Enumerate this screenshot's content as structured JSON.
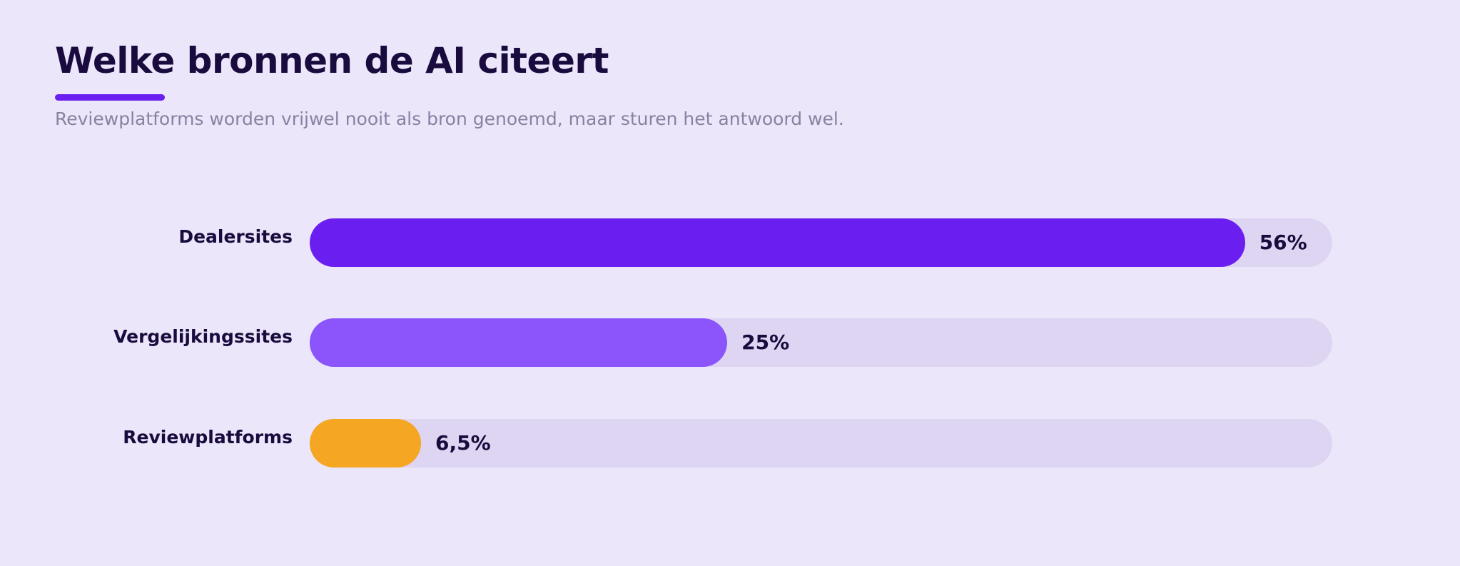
{
  "header": {
    "title": "Welke bronnen de AI citeert",
    "subtitle": "Reviewplatforms worden vrijwel nooit als bron genoemd, maar sturen het antwoord wel."
  },
  "colors": {
    "background": "#ebe6f9",
    "accent": "#6a1ff0",
    "track": "#ded5f2",
    "text": "#190b3d",
    "subtitle": "#8a81a2"
  },
  "chart_data": {
    "type": "bar",
    "orientation": "horizontal",
    "categories": [
      "Dealersites",
      "Vergelijkingssites",
      "Reviewplatforms"
    ],
    "values": [
      56,
      25,
      6.5
    ],
    "value_labels": [
      "56%",
      "25%",
      "6,5%"
    ],
    "bar_colors": [
      "#6a1ff0",
      "#8b55fb",
      "#f5a623"
    ],
    "xlim": [
      0,
      60
    ],
    "grid": false,
    "legend": "none"
  }
}
